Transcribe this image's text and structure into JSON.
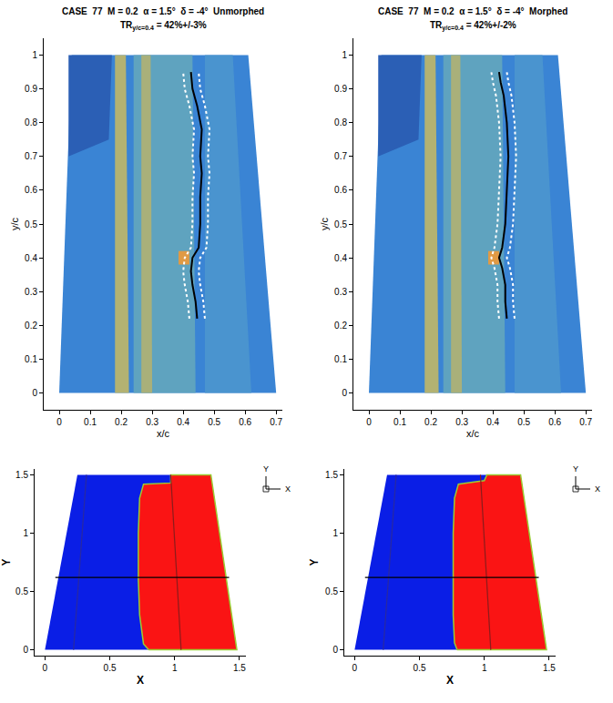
{
  "chart_data": [
    {
      "type": "thermography",
      "title": "CASE  77  M = 0.2  α = 1.5°  δ = -4°  Unmorphed",
      "subtitle_parts": [
        "TR",
        "y/c=0.4",
        " = 42%+/-3%"
      ],
      "x_label": "x/c",
      "y_label": "y/c",
      "xlim": [
        -0.05,
        0.72
      ],
      "ylim": [
        -0.05,
        1.05
      ],
      "xticks": [
        0,
        0.1,
        0.2,
        0.3,
        0.4,
        0.5,
        0.6,
        0.7
      ],
      "yticks": [
        0,
        0.1,
        0.2,
        0.3,
        0.4,
        0.5,
        0.6,
        0.7,
        0.8,
        0.9,
        1
      ],
      "planform": {
        "x": [
          0,
          0.7,
          0.61,
          0.04,
          0
        ],
        "y": [
          0,
          0,
          1,
          1,
          0
        ],
        "color": "#3a84d4"
      },
      "regions": [
        {
          "x": [
            0.03,
            0.17,
            0.16,
            0.03
          ],
          "y": [
            1,
            1,
            0.75,
            0.7
          ],
          "color": "#2b5fb5"
        },
        {
          "x": [
            0.24,
            0.44,
            0.43,
            0.24
          ],
          "y": [
            0,
            0,
            1,
            1
          ],
          "color": "#5fa3bf"
        },
        {
          "x": [
            0.47,
            0.62,
            0.56,
            0.47
          ],
          "y": [
            0,
            0,
            1,
            1
          ],
          "color": "#4a94cf"
        },
        {
          "x": [
            0.18,
            0.225,
            0.215,
            0.18
          ],
          "y": [
            0,
            0,
            1,
            1
          ],
          "color": "#b3b272"
        },
        {
          "x": [
            0.265,
            0.3,
            0.295,
            0.265
          ],
          "y": [
            0,
            0,
            1,
            1
          ],
          "color": "#a9b07a"
        },
        {
          "x": [
            0.385,
            0.42,
            0.42,
            0.385
          ],
          "y": [
            0.38,
            0.38,
            0.42,
            0.42
          ],
          "color": "#e09a45"
        }
      ],
      "lines": [
        {
          "x": [
            0.42,
            0.415,
            0.405,
            0.4,
            0.405,
            0.425,
            0.43,
            0.43,
            0.435,
            0.43,
            0.435,
            0.42,
            0.405,
            0.4
          ],
          "y": [
            0.22,
            0.27,
            0.32,
            0.36,
            0.4,
            0.43,
            0.5,
            0.58,
            0.65,
            0.7,
            0.78,
            0.85,
            0.9,
            0.95
          ],
          "color": "#ffffff",
          "line_style": "dotted"
        },
        {
          "x": [
            0.47,
            0.465,
            0.455,
            0.45,
            0.455,
            0.475,
            0.48,
            0.48,
            0.485,
            0.48,
            0.485,
            0.47,
            0.455,
            0.45
          ],
          "y": [
            0.22,
            0.27,
            0.32,
            0.36,
            0.4,
            0.43,
            0.5,
            0.58,
            0.65,
            0.7,
            0.78,
            0.85,
            0.9,
            0.95
          ],
          "color": "#ffffff",
          "line_style": "dotted"
        },
        {
          "x": [
            0.445,
            0.44,
            0.43,
            0.425,
            0.43,
            0.45,
            0.455,
            0.455,
            0.46,
            0.455,
            0.46,
            0.445,
            0.43,
            0.425
          ],
          "y": [
            0.22,
            0.27,
            0.32,
            0.36,
            0.4,
            0.43,
            0.5,
            0.58,
            0.65,
            0.7,
            0.78,
            0.85,
            0.9,
            0.95
          ],
          "color": "#000000",
          "line_style": "solid"
        }
      ]
    },
    {
      "type": "thermography",
      "title": "CASE  77  M = 0.2  α = 1.5°  δ = -4°  Morphed",
      "subtitle_parts": [
        "TR",
        "y/c=0.4",
        " = 42%+/-2%"
      ],
      "x_label": "x/c",
      "y_label": "y/c",
      "xlim": [
        -0.05,
        0.72
      ],
      "ylim": [
        -0.05,
        1.05
      ],
      "xticks": [
        0,
        0.1,
        0.2,
        0.3,
        0.4,
        0.5,
        0.6,
        0.7
      ],
      "yticks": [
        0,
        0.1,
        0.2,
        0.3,
        0.4,
        0.5,
        0.6,
        0.7,
        0.8,
        0.9,
        1
      ],
      "planform": {
        "x": [
          0,
          0.7,
          0.61,
          0.04,
          0
        ],
        "y": [
          0,
          0,
          1,
          1,
          0
        ],
        "color": "#3a84d4"
      },
      "regions": [
        {
          "x": [
            0.03,
            0.17,
            0.16,
            0.03
          ],
          "y": [
            1,
            1,
            0.75,
            0.7
          ],
          "color": "#2b5fb5"
        },
        {
          "x": [
            0.24,
            0.44,
            0.43,
            0.24
          ],
          "y": [
            0,
            0,
            1,
            1
          ],
          "color": "#5fa3bf"
        },
        {
          "x": [
            0.47,
            0.62,
            0.56,
            0.47
          ],
          "y": [
            0,
            0,
            1,
            1
          ],
          "color": "#4a94cf"
        },
        {
          "x": [
            0.18,
            0.225,
            0.215,
            0.18
          ],
          "y": [
            0,
            0,
            1,
            1
          ],
          "color": "#b3b272"
        },
        {
          "x": [
            0.265,
            0.3,
            0.295,
            0.265
          ],
          "y": [
            0,
            0,
            1,
            1
          ],
          "color": "#a9b07a"
        },
        {
          "x": [
            0.385,
            0.42,
            0.42,
            0.385
          ],
          "y": [
            0.38,
            0.38,
            0.42,
            0.42
          ],
          "color": "#e09a45"
        }
      ],
      "lines": [
        {
          "x": [
            0.42,
            0.415,
            0.415,
            0.405,
            0.395,
            0.405,
            0.415,
            0.42,
            0.425,
            0.42,
            0.41,
            0.4,
            0.395
          ],
          "y": [
            0.22,
            0.27,
            0.32,
            0.37,
            0.4,
            0.43,
            0.5,
            0.6,
            0.7,
            0.8,
            0.88,
            0.92,
            0.95
          ],
          "color": "#ffffff",
          "line_style": "dotted"
        },
        {
          "x": [
            0.47,
            0.465,
            0.465,
            0.455,
            0.445,
            0.455,
            0.465,
            0.47,
            0.475,
            0.47,
            0.46,
            0.45,
            0.445
          ],
          "y": [
            0.22,
            0.27,
            0.32,
            0.37,
            0.4,
            0.43,
            0.5,
            0.6,
            0.7,
            0.8,
            0.88,
            0.92,
            0.95
          ],
          "color": "#ffffff",
          "line_style": "dotted"
        },
        {
          "x": [
            0.445,
            0.44,
            0.44,
            0.43,
            0.42,
            0.43,
            0.44,
            0.445,
            0.45,
            0.445,
            0.435,
            0.425,
            0.42
          ],
          "y": [
            0.22,
            0.27,
            0.32,
            0.37,
            0.4,
            0.43,
            0.5,
            0.6,
            0.7,
            0.8,
            0.88,
            0.92,
            0.95
          ],
          "color": "#000000",
          "line_style": "solid"
        }
      ]
    },
    {
      "type": "contour",
      "x_label": "X",
      "y_label": "Y",
      "xlim": [
        -0.08,
        1.55
      ],
      "ylim": [
        -0.05,
        1.55
      ],
      "xticks": [
        0,
        0.5,
        1,
        1.5
      ],
      "yticks": [
        0,
        0.5,
        1,
        1.5
      ],
      "triad_labels": [
        "Y",
        "X"
      ],
      "planform": {
        "x": [
          0,
          1.48,
          1.28,
          0.25,
          0
        ],
        "y": [
          0,
          0,
          1.5,
          1.5,
          0
        ],
        "color": "#0a1ee6"
      },
      "regions": [
        {
          "x": [
            0.8,
            0.76,
            0.73,
            0.72,
            0.72,
            0.73,
            0.76,
            0.97,
            0.97,
            1.28,
            1.48,
            0.8
          ],
          "y": [
            0,
            0.05,
            0.3,
            0.6,
            1.0,
            1.3,
            1.42,
            1.43,
            1.5,
            1.5,
            0,
            0
          ],
          "color": "#fa1414"
        }
      ],
      "lines": [
        {
          "x": [
            0.22,
            0.32
          ],
          "y": [
            0,
            1.5
          ],
          "color": "#2a2aa0",
          "line_style": "solid"
        },
        {
          "x": [
            1.05,
            0.97
          ],
          "y": [
            0,
            1.5
          ],
          "color": "#8c1c1c",
          "line_style": "solid"
        },
        {
          "x": [
            0.08,
            1.42
          ],
          "y": [
            0.62,
            0.62
          ],
          "color": "#000000",
          "line_style": "solid"
        }
      ]
    },
    {
      "type": "contour",
      "x_label": "X",
      "y_label": "Y",
      "xlim": [
        -0.08,
        1.55
      ],
      "ylim": [
        -0.05,
        1.55
      ],
      "xticks": [
        0,
        0.5,
        1,
        1.5
      ],
      "yticks": [
        0,
        0.5,
        1,
        1.5
      ],
      "triad_labels": [
        "Y",
        "X"
      ],
      "planform": {
        "x": [
          0,
          1.48,
          1.28,
          0.25,
          0
        ],
        "y": [
          0,
          0,
          1.5,
          1.5,
          0
        ],
        "color": "#0a1ee6"
      },
      "regions": [
        {
          "x": [
            0.79,
            0.77,
            0.76,
            0.76,
            0.76,
            0.77,
            0.8,
            1.0,
            1.02,
            1.28,
            1.48,
            0.79
          ],
          "y": [
            0,
            0.06,
            0.3,
            0.6,
            1.0,
            1.3,
            1.42,
            1.45,
            1.5,
            1.5,
            0,
            0
          ],
          "color": "#fa1414"
        }
      ],
      "lines": [
        {
          "x": [
            0.22,
            0.32
          ],
          "y": [
            0,
            1.5
          ],
          "color": "#2a2aa0",
          "line_style": "solid"
        },
        {
          "x": [
            1.05,
            0.97
          ],
          "y": [
            0,
            1.5
          ],
          "color": "#8c1c1c",
          "line_style": "solid"
        },
        {
          "x": [
            0.08,
            1.42
          ],
          "y": [
            0.62,
            0.62
          ],
          "color": "#000000",
          "line_style": "solid"
        }
      ]
    }
  ]
}
